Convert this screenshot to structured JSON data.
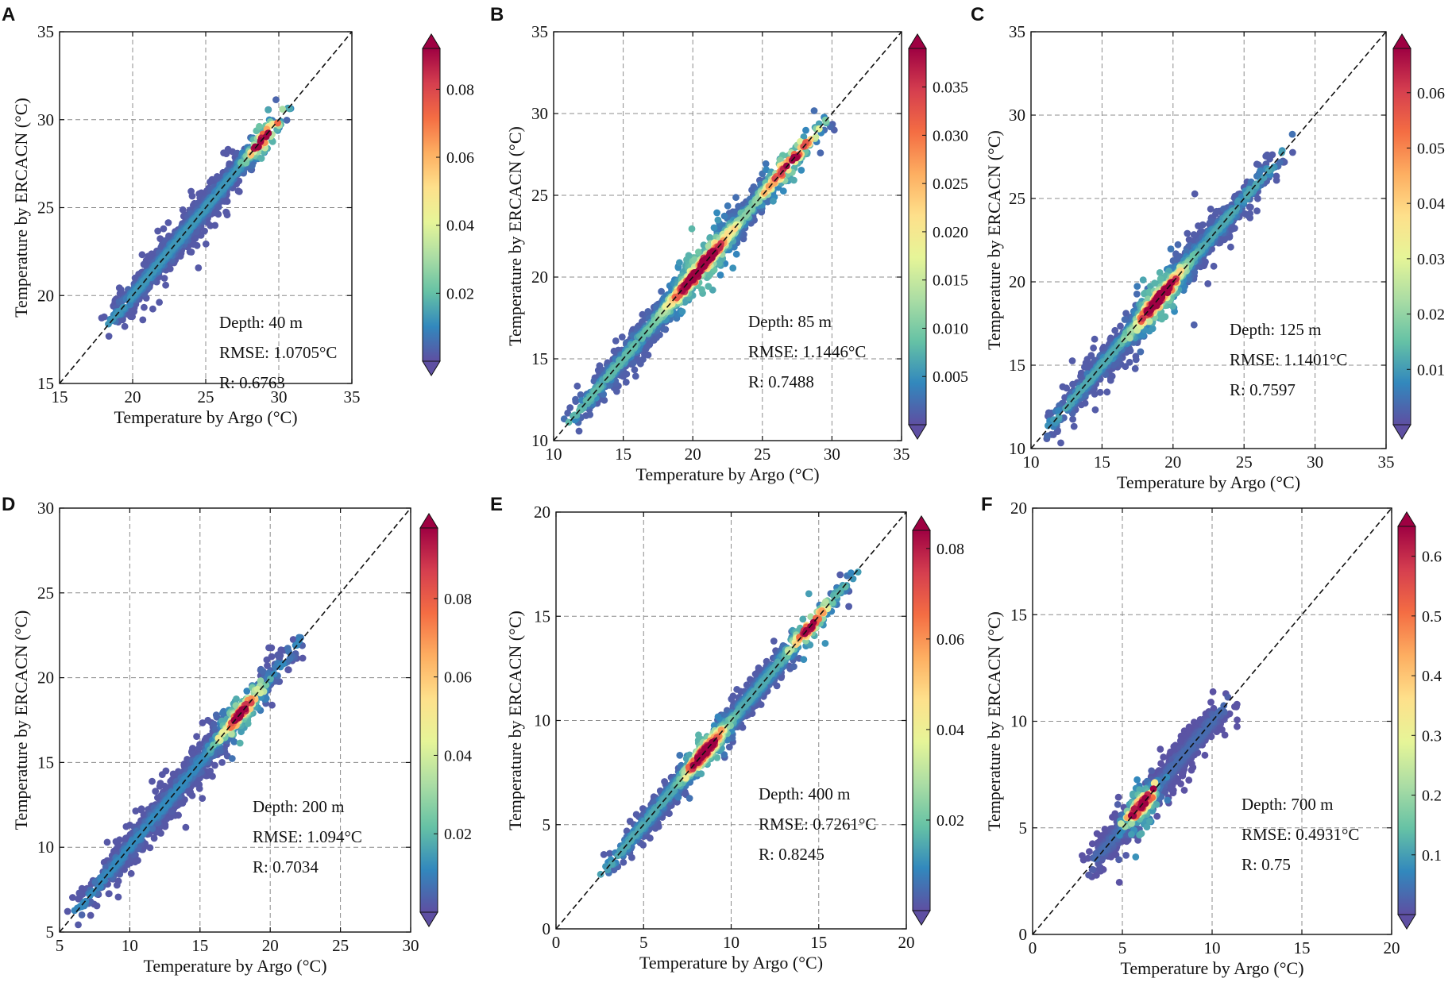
{
  "colormap": [
    "#5e4fa2",
    "#3288bd",
    "#66c2a5",
    "#abdda4",
    "#e6f598",
    "#fee08b",
    "#fdae61",
    "#f46d43",
    "#d53e4f",
    "#9e0142"
  ],
  "chart_data": [
    {
      "type": "scatter",
      "panel": "A",
      "xlabel": "Temperature by Argo (°C)",
      "ylabel": "Temperature by ERCACN (°C)",
      "xlim": [
        15,
        35
      ],
      "ylim": [
        15,
        35
      ],
      "xticks": [
        15,
        20,
        25,
        30,
        35
      ],
      "yticks": [
        15,
        20,
        25,
        30,
        35
      ],
      "grid": true,
      "identity_line": true,
      "annotations": [
        "Depth: 40 m",
        "RMSE: 1.0705°C",
        "R: 0.6763"
      ],
      "colorbar": {
        "min": 0,
        "max": 0.092,
        "ticks": [
          0.02,
          0.04,
          0.06,
          0.08
        ],
        "labels": [
          "0.02",
          "0.04",
          "0.06",
          "0.08"
        ]
      },
      "points": {
        "n": 1200,
        "xmin": 18,
        "xmax": 30.8,
        "sd_along": 0.3,
        "sd_perp": 0.9,
        "min_sd": 0.25,
        "peak": 29,
        "peak_width": 0.8,
        "background": 0.12,
        "seed": 11
      }
    },
    {
      "type": "scatter",
      "panel": "B",
      "xlabel": "Temperature by Argo (°C)",
      "ylabel": "Temperature by ERCACN (°C)",
      "xlim": [
        10,
        35
      ],
      "ylim": [
        10,
        35
      ],
      "xticks": [
        10,
        15,
        20,
        25,
        30,
        35
      ],
      "yticks": [
        10,
        15,
        20,
        25,
        30,
        35
      ],
      "grid": true,
      "identity_line": true,
      "annotations": [
        "Depth: 85 m",
        "RMSE: 1.1446°C",
        "R: 0.7488"
      ],
      "colorbar": {
        "min": 0,
        "max": 0.039,
        "ticks": [
          0.005,
          0.01,
          0.015,
          0.02,
          0.025,
          0.03,
          0.035
        ],
        "labels": [
          "0.005",
          "0.010",
          "0.015",
          "0.020",
          "0.025",
          "0.030",
          "0.035"
        ]
      },
      "points": {
        "n": 1400,
        "xmin": 11,
        "xmax": 30.5,
        "sd_along": 0.3,
        "sd_perp": 1.0,
        "min_sd": 0.3,
        "peak": 20.5,
        "peak_width": 1.8,
        "peak2": 27,
        "peak2_width": 1.5,
        "background": 0.18,
        "seed": 23
      }
    },
    {
      "type": "scatter",
      "panel": "C",
      "xlabel": "Temperature by Argo (°C)",
      "ylabel": "Temperature by ERCACN (°C)",
      "xlim": [
        10,
        35
      ],
      "ylim": [
        10,
        35
      ],
      "xticks": [
        10,
        15,
        20,
        25,
        30,
        35
      ],
      "yticks": [
        10,
        15,
        20,
        25,
        30,
        35
      ],
      "grid": true,
      "identity_line": true,
      "annotations": [
        "Depth: 125 m",
        "RMSE: 1.1401°C",
        "R: 0.7597"
      ],
      "colorbar": {
        "min": 0,
        "max": 0.068,
        "ticks": [
          0.01,
          0.02,
          0.03,
          0.04,
          0.05,
          0.06
        ],
        "labels": [
          "0.01",
          "0.02",
          "0.03",
          "0.04",
          "0.05",
          "0.06"
        ]
      },
      "points": {
        "n": 1500,
        "xmin": 11,
        "xmax": 28.5,
        "sd_along": 0.35,
        "sd_perp": 1.0,
        "min_sd": 0.3,
        "peak": 19,
        "peak_width": 1.2,
        "background": 0.15,
        "seed": 37
      }
    },
    {
      "type": "scatter",
      "panel": "D",
      "xlabel": "Temperature by Argo (°C)",
      "ylabel": "Temperature by ERCACN (°C)",
      "xlim": [
        5,
        30
      ],
      "ylim": [
        5,
        30
      ],
      "xticks": [
        5,
        10,
        15,
        20,
        25,
        30
      ],
      "yticks": [
        5,
        10,
        15,
        20,
        25,
        30
      ],
      "grid": true,
      "identity_line": true,
      "annotations": [
        "Depth: 200 m",
        "RMSE: 1.094°C",
        "R: 0.7034"
      ],
      "colorbar": {
        "min": 0,
        "max": 0.098,
        "ticks": [
          0.02,
          0.04,
          0.06,
          0.08
        ],
        "labels": [
          "0.02",
          "0.04",
          "0.06",
          "0.08"
        ]
      },
      "points": {
        "n": 1100,
        "xmin": 6,
        "xmax": 23,
        "sd_along": 0.35,
        "sd_perp": 1.0,
        "min_sd": 0.3,
        "peak": 18,
        "peak_width": 1.0,
        "background": 0.1,
        "seed": 51
      }
    },
    {
      "type": "scatter",
      "panel": "E",
      "xlabel": "Temperature by Argo (°C)",
      "ylabel": "Temperature by ERCACN (°C)",
      "xlim": [
        0,
        20
      ],
      "ylim": [
        0,
        20
      ],
      "xticks": [
        0,
        5,
        10,
        15,
        20
      ],
      "yticks": [
        0,
        5,
        10,
        15,
        20
      ],
      "grid": true,
      "identity_line": true,
      "annotations": [
        "Depth: 400 m",
        "RMSE: 0.7261°C",
        "R: 0.8245"
      ],
      "colorbar": {
        "min": 0,
        "max": 0.084,
        "ticks": [
          0.02,
          0.04,
          0.06,
          0.08
        ],
        "labels": [
          "0.02",
          "0.04",
          "0.06",
          "0.08"
        ]
      },
      "points": {
        "n": 1200,
        "xmin": 2.5,
        "xmax": 17.5,
        "sd_along": 0.25,
        "sd_perp": 0.6,
        "min_sd": 0.2,
        "peak": 8.5,
        "peak_width": 0.8,
        "peak2": 14.5,
        "peak2_width": 0.8,
        "background": 0.15,
        "seed": 67
      }
    },
    {
      "type": "scatter",
      "panel": "F",
      "xlabel": "Temperature by Argo (°C)",
      "ylabel": "Temperature by ERCACN (°C)",
      "xlim": [
        0,
        20
      ],
      "ylim": [
        0,
        20
      ],
      "xticks": [
        0,
        5,
        10,
        15,
        20
      ],
      "yticks": [
        0,
        5,
        10,
        15,
        20
      ],
      "grid": true,
      "identity_line": true,
      "annotations": [
        "Depth: 700 m",
        "RMSE: 0.4931°C",
        "R: 0.75"
      ],
      "colorbar": {
        "min": 0,
        "max": 0.65,
        "ticks": [
          0.1,
          0.2,
          0.3,
          0.4,
          0.5,
          0.6
        ],
        "labels": [
          "0.1",
          "0.2",
          "0.3",
          "0.4",
          "0.5",
          "0.6"
        ]
      },
      "points": {
        "n": 900,
        "xmin": 3,
        "xmax": 11.5,
        "sd_along": 0.3,
        "sd_perp": 0.8,
        "min_sd": 0.2,
        "peak": 6,
        "peak_width": 0.5,
        "background": 0.05,
        "seed": 83
      }
    }
  ]
}
